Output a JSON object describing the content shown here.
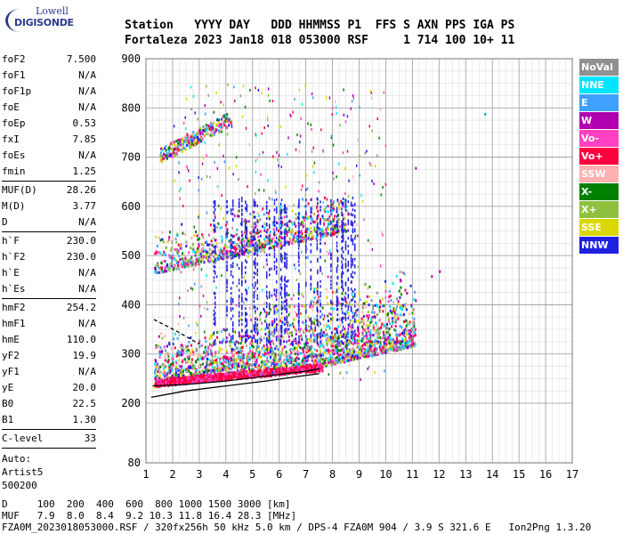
{
  "logo": {
    "line1": "Lowell",
    "line2": "DIGISONDE"
  },
  "header": {
    "line1": "Station   YYYY DAY   DDD HHMMSS P1  FFS S AXN PPS IGA PS",
    "line2": "Fortaleza 2023 Jan18 018 053000 RSF     1 714 100 10+ 11"
  },
  "params": {
    "group1": [
      {
        "k": "foF2",
        "v": "7.500"
      },
      {
        "k": "foF1",
        "v": "N/A"
      },
      {
        "k": "foF1p",
        "v": "N/A"
      },
      {
        "k": "foE",
        "v": "N/A"
      },
      {
        "k": "foEp",
        "v": "0.53"
      },
      {
        "k": "fxI",
        "v": "7.85"
      },
      {
        "k": "foEs",
        "v": "N/A"
      },
      {
        "k": "fmin",
        "v": "1.25"
      }
    ],
    "group2": [
      {
        "k": "MUF(D)",
        "v": "28.26"
      },
      {
        "k": "M(D)",
        "v": "3.77"
      },
      {
        "k": "D",
        "v": "N/A"
      }
    ],
    "group3": [
      {
        "k": "h`F",
        "v": "230.0"
      },
      {
        "k": "h`F2",
        "v": "230.0"
      },
      {
        "k": "h`E",
        "v": "N/A"
      },
      {
        "k": "h`Es",
        "v": "N/A"
      }
    ],
    "group4": [
      {
        "k": "hmF2",
        "v": "254.2"
      },
      {
        "k": "hmF1",
        "v": "N/A"
      },
      {
        "k": "hmE",
        "v": "110.0"
      },
      {
        "k": "yF2",
        "v": "19.9"
      },
      {
        "k": "yF1",
        "v": "N/A"
      },
      {
        "k": "yE",
        "v": "20.0"
      },
      {
        "k": "B0",
        "v": "22.5"
      },
      {
        "k": "B1",
        "v": "1.30"
      }
    ],
    "clevel": {
      "k": "C-level",
      "v": "33"
    },
    "auto": [
      "Auto:",
      "Artist5",
      "500200"
    ]
  },
  "legend": [
    {
      "label": "NoVal",
      "color": "#909090"
    },
    {
      "label": "NNE",
      "color": "#00e5ff"
    },
    {
      "label": "E",
      "color": "#3fa0ff"
    },
    {
      "label": "W",
      "color": "#b000b0"
    },
    {
      "label": "Vo-",
      "color": "#ff40c0"
    },
    {
      "label": "Vo+",
      "color": "#ff0040"
    },
    {
      "label": "SSW",
      "color": "#ffb0b0"
    },
    {
      "label": "X-",
      "color": "#008000"
    },
    {
      "label": "X+",
      "color": "#90c040"
    },
    {
      "label": "SSE",
      "color": "#d8d800"
    },
    {
      "label": "NNW",
      "color": "#2020e0"
    }
  ],
  "bottom": {
    "line1": "D     100  200  400  600  800 1000 1500 3000 [km]",
    "line2": "MUF   7.9  8.0  8.4  9.2 10.3 11.8 16.4 28.3 [MHz]",
    "line3": "FZA0M_2023018053000.RSF / 320fx256h 50 kHz 5.0 km / DPS-4 FZA0M 904 / 3.9 S 321.6 E   Ion2Png 1.3.20"
  },
  "chart_data": {
    "type": "scatter",
    "x_ticks": [
      1,
      2,
      3,
      4,
      5,
      6,
      7,
      8,
      9,
      10,
      11,
      12,
      13,
      14,
      15,
      16,
      17
    ],
    "y_ticks": [
      80,
      200,
      300,
      400,
      500,
      600,
      700,
      800,
      900
    ],
    "xlim": [
      1,
      17
    ],
    "ylim": [
      80,
      900
    ],
    "grid": true,
    "legend_position": "right",
    "traces": [
      {
        "name": "ordinary trace",
        "x": [
          1.25,
          2.5,
          4.0,
          5.5,
          7.0,
          7.5
        ],
        "y": [
          235,
          238,
          245,
          255,
          265,
          270
        ]
      },
      {
        "name": "profile",
        "x": [
          1.2,
          2.5,
          4.0,
          5.5,
          6.8,
          7.5
        ],
        "y": [
          212,
          225,
          235,
          245,
          255,
          260
        ]
      },
      {
        "name": "profile-upper",
        "x": [
          1.3,
          2.2,
          3.0
        ],
        "y": [
          370,
          345,
          320
        ]
      }
    ]
  }
}
